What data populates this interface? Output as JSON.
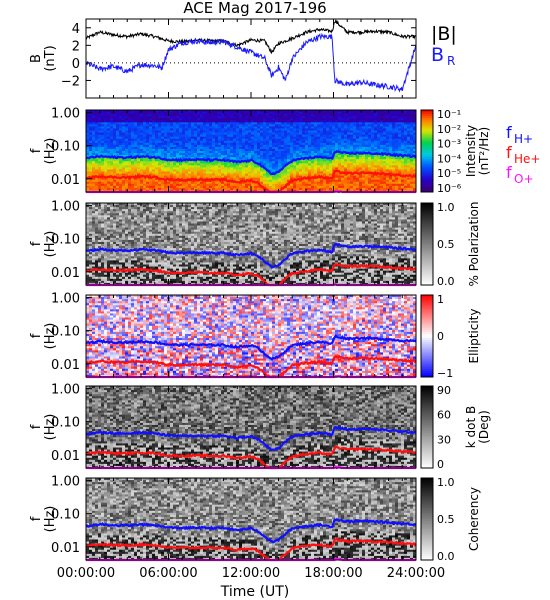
{
  "title": "ACE Mag 2017-196",
  "colors": {
    "total": "#000000",
    "radial": "#1a1aff",
    "h_plus": "#1010ff",
    "he_plus": "#ff1010",
    "o_plus": "#ff10ff"
  },
  "legend": {
    "top_B": "|B|",
    "top_BR": "B",
    "top_BR_sub": "R",
    "fH": "f",
    "fH_sub": "H+",
    "fHe": "f",
    "fHe_sub": "He+",
    "fO": "f",
    "fO_sub": "O+"
  },
  "x_axis": {
    "label": "Time (UT)",
    "ticks": [
      "00:00:00",
      "06:00:00",
      "12:00:00",
      "18:00:00",
      "24:00:00"
    ],
    "range_hours": [
      0,
      24
    ]
  },
  "chart_data": [
    {
      "type": "line",
      "panel": "magnetic-field",
      "ylabel": "B",
      "ylabel_unit": "(nT)",
      "ylim": [
        -4,
        5
      ],
      "yticks": [
        "4",
        "2",
        "0",
        "−2"
      ],
      "ytick_values": [
        4,
        2,
        0,
        -2
      ],
      "series": [
        {
          "name": "|B|",
          "x": [
            0,
            1,
            2,
            3,
            4,
            5,
            6,
            7,
            8,
            9,
            10,
            11,
            12,
            13,
            13.5,
            14,
            15,
            16,
            17,
            17.9,
            18.1,
            19,
            20,
            21,
            22,
            23,
            24
          ],
          "values": [
            2.8,
            3.5,
            3.2,
            3.0,
            3.3,
            3.0,
            2.5,
            2.4,
            2.6,
            2.5,
            2.5,
            2.0,
            2.6,
            2.5,
            1.2,
            2.2,
            2.8,
            3.5,
            3.8,
            3.6,
            4.8,
            3.5,
            3.5,
            3.6,
            3.5,
            3.0,
            3.0
          ]
        },
        {
          "name": "B_R",
          "x": [
            0,
            1,
            2,
            3,
            4,
            5,
            5.5,
            6,
            7,
            8,
            9,
            10,
            11,
            12,
            13,
            13.5,
            14,
            14.5,
            15,
            16,
            17,
            17.9,
            18.1,
            19,
            20,
            21,
            22,
            23,
            24
          ],
          "values": [
            0.0,
            -0.7,
            -0.4,
            -1.0,
            -0.2,
            -0.3,
            -0.6,
            1.5,
            2.3,
            2.5,
            2.3,
            2.4,
            1.8,
            1.2,
            0.5,
            -1.5,
            -0.5,
            -2.0,
            0.5,
            2.3,
            3.0,
            3.0,
            -2.0,
            -2.5,
            -2.2,
            -2.5,
            -2.7,
            -3.0,
            2.0
          ]
        }
      ]
    },
    {
      "type": "heatmap",
      "panel": "intensity",
      "ylabel": "f",
      "ylabel_unit": "(Hz)",
      "ylim_log": [
        0.004,
        1.2
      ],
      "yticks": [
        "1.00",
        "0.10",
        "0.01"
      ],
      "colorbar_label": "Intensity",
      "colorbar_unit": "(nT²/Hz)",
      "colorbar_ticks": [
        "10⁻¹",
        "10⁻²",
        "10⁻³",
        "10⁻⁴",
        "10⁻⁵",
        "10⁻⁶"
      ],
      "colormap": "rainbow"
    },
    {
      "type": "heatmap",
      "panel": "polarization",
      "ylabel": "f",
      "ylabel_unit": "(Hz)",
      "ylim_log": [
        0.004,
        1.2
      ],
      "yticks": [
        "1.00",
        "0.10",
        "0.01"
      ],
      "colorbar_label": "% Polarization",
      "colorbar_ticks": [
        "1.0",
        "0.5",
        "0.0"
      ],
      "colormap": "grayscale"
    },
    {
      "type": "heatmap",
      "panel": "ellipticity",
      "ylabel": "f",
      "ylabel_unit": "(Hz)",
      "ylim_log": [
        0.004,
        1.2
      ],
      "yticks": [
        "1.00",
        "0.10",
        "0.01"
      ],
      "colorbar_label": "Ellipticity",
      "colorbar_ticks": [
        "1",
        "0",
        "−1"
      ],
      "colormap": "blue-white-red"
    },
    {
      "type": "heatmap",
      "panel": "k-dot-b",
      "ylabel": "f",
      "ylabel_unit": "(Hz)",
      "ylim_log": [
        0.004,
        1.2
      ],
      "yticks": [
        "1.00",
        "0.10",
        "0.01"
      ],
      "colorbar_label": "k dot B",
      "colorbar_unit": "(Deg)",
      "colorbar_ticks": [
        "90",
        "60",
        "30",
        "0"
      ],
      "colormap": "grayscale"
    },
    {
      "type": "heatmap",
      "panel": "coherency",
      "ylabel": "f",
      "ylabel_unit": "(Hz)",
      "ylim_log": [
        0.004,
        1.2
      ],
      "yticks": [
        "1.00",
        "0.10",
        "0.01"
      ],
      "colorbar_label": "Coherency",
      "colorbar_ticks": [
        "1.0",
        "0.5",
        "0.0"
      ],
      "colormap": "grayscale"
    }
  ],
  "gyro_lines": {
    "x_hours": [
      0,
      1,
      2,
      3,
      4,
      5,
      6,
      7,
      8,
      9,
      10,
      11,
      12,
      12.5,
      13,
      13.5,
      14,
      14.5,
      15,
      16,
      17,
      17.9,
      18.1,
      19,
      20,
      21,
      22,
      23,
      24
    ],
    "h_plus_hz": [
      0.042,
      0.048,
      0.045,
      0.044,
      0.047,
      0.045,
      0.038,
      0.037,
      0.038,
      0.037,
      0.037,
      0.032,
      0.036,
      0.03,
      0.02,
      0.014,
      0.016,
      0.024,
      0.036,
      0.042,
      0.046,
      0.04,
      0.068,
      0.058,
      0.06,
      0.058,
      0.055,
      0.05,
      0.048
    ],
    "he_plus_hz": [
      0.0105,
      0.012,
      0.0112,
      0.011,
      0.0118,
      0.0112,
      0.0095,
      0.0093,
      0.0095,
      0.0093,
      0.0093,
      0.008,
      0.009,
      0.0075,
      0.005,
      0.0035,
      0.004,
      0.006,
      0.009,
      0.0105,
      0.0115,
      0.01,
      0.017,
      0.0145,
      0.015,
      0.0145,
      0.0138,
      0.0125,
      0.012
    ],
    "o_plus_hz": [
      0.0026,
      0.003,
      0.0028,
      0.00275,
      0.00295,
      0.0028,
      0.0024,
      0.0023,
      0.0024,
      0.0023,
      0.0023,
      0.002,
      0.00225,
      0.0019,
      0.00125,
      0.0009,
      0.001,
      0.0015,
      0.00225,
      0.0026,
      0.0029,
      0.0025,
      0.0043,
      0.0036,
      0.0038,
      0.0036,
      0.0035,
      0.0031,
      0.003
    ]
  }
}
